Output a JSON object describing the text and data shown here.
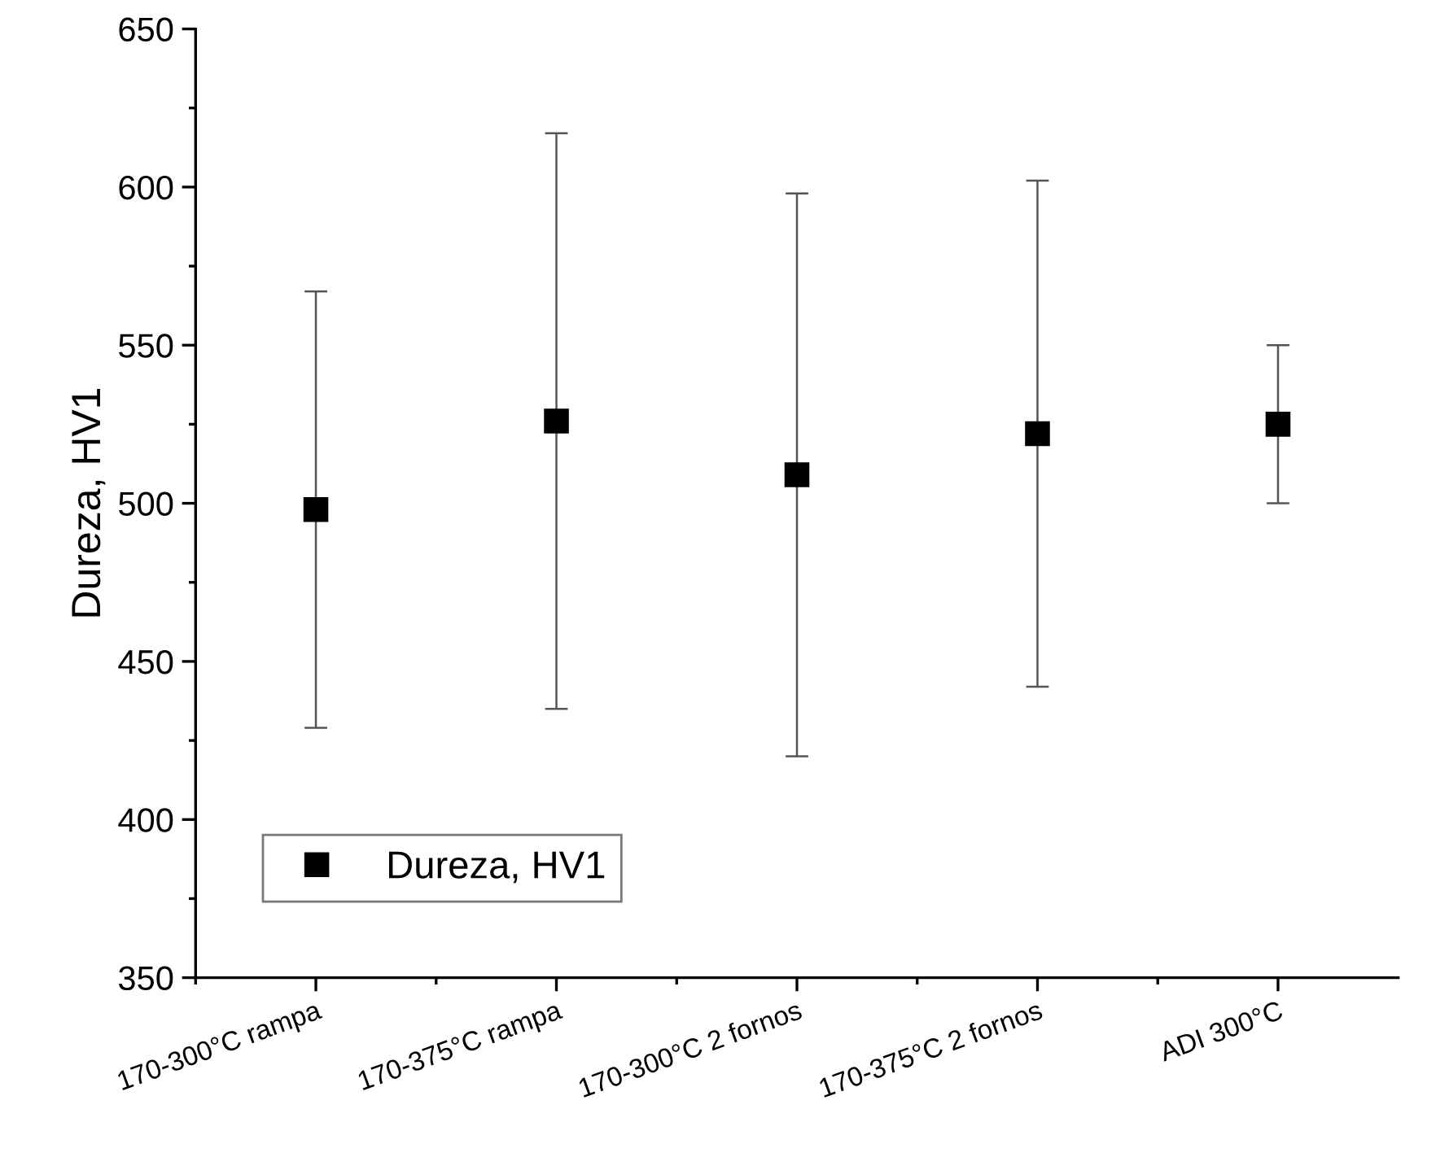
{
  "chart_data": {
    "type": "scatter",
    "ylabel": "Dureza, HV1",
    "categories": [
      "170-300°C rampa",
      "170-375°C rampa",
      "170-300°C 2 fornos",
      "170-375°C 2 fornos",
      "ADI 300°C"
    ],
    "series": [
      {
        "name": "Dureza, HV1",
        "color": "#000000",
        "values": [
          498,
          526,
          509,
          522,
          525
        ],
        "errors": [
          [
            429,
            567
          ],
          [
            435,
            617
          ],
          [
            420,
            598
          ],
          [
            442,
            602
          ],
          [
            500,
            550
          ]
        ]
      }
    ],
    "ylim": [
      350,
      650
    ],
    "yticks": [
      350,
      400,
      450,
      500,
      550,
      600,
      650
    ],
    "marker": "square",
    "legend": "bottom left",
    "grid": false
  }
}
